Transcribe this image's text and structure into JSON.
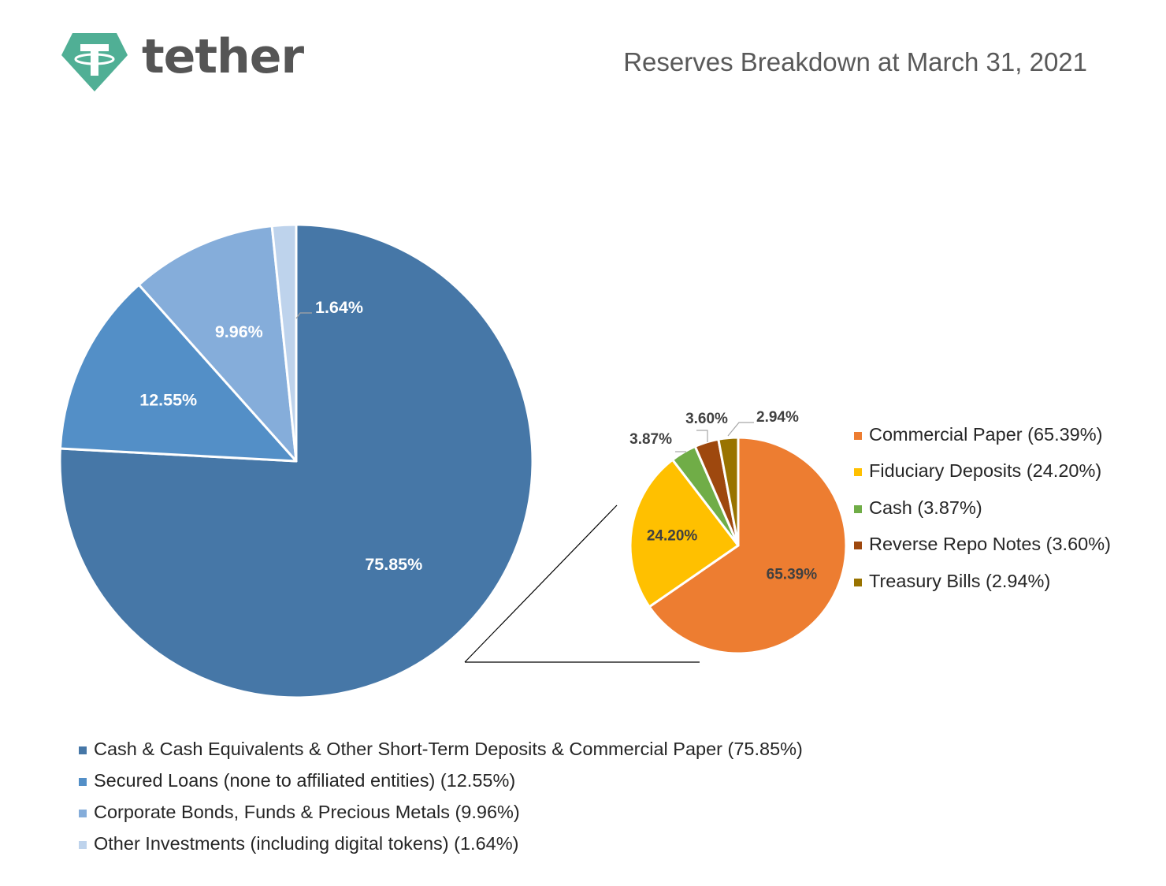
{
  "header": {
    "brand_name": "tether",
    "title": "Reserves Breakdown at March 31, 2021",
    "logo_colors": {
      "diamond": "#50AF95",
      "mark": "#ffffff"
    }
  },
  "chart_data": [
    {
      "type": "pie",
      "slices": [
        {
          "label": "Cash & Cash Equivalents & Other Short-Term Deposits & Commercial Paper (75.85%)",
          "value": 75.85,
          "data_label": "75.85%",
          "color": "#4677A7"
        },
        {
          "label": "Secured Loans (none to affiliated entities) (12.55%)",
          "value": 12.55,
          "data_label": "12.55%",
          "color": "#538FC7"
        },
        {
          "label": "Corporate Bonds, Funds & Precious Metals (9.96%)",
          "value": 9.96,
          "data_label": "9.96%",
          "color": "#85ADDA"
        },
        {
          "label": "Other Investments (including digital tokens) (1.64%)",
          "value": 1.64,
          "data_label": "1.64%",
          "color": "#BED3EC"
        }
      ]
    },
    {
      "type": "pie",
      "slices": [
        {
          "label": "Commercial Paper (65.39%)",
          "value": 65.39,
          "data_label": "65.39%",
          "color": "#ED7D31"
        },
        {
          "label": "Fiduciary Deposits (24.20%)",
          "value": 24.2,
          "data_label": "24.20%",
          "color": "#FFC000"
        },
        {
          "label": "Cash (3.87%)",
          "value": 3.87,
          "data_label": "3.87%",
          "color": "#70AD47"
        },
        {
          "label": "Reverse Repo Notes (3.60%)",
          "value": 3.6,
          "data_label": "3.60%",
          "color": "#9E480E"
        },
        {
          "label": "Treasury Bills (2.94%)",
          "value": 2.94,
          "data_label": "2.94%",
          "color": "#997300"
        }
      ]
    }
  ]
}
